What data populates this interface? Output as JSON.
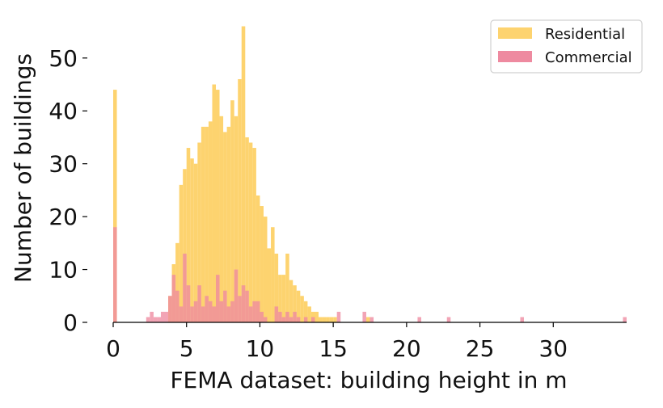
{
  "chart_data": {
    "type": "bar",
    "xlabel": "FEMA dataset: building height in m",
    "ylabel": "Number of buildings",
    "xlim": [
      0,
      35
    ],
    "ylim": [
      0,
      57
    ],
    "xticks": [
      0,
      5,
      10,
      15,
      20,
      25,
      30
    ],
    "yticks": [
      0,
      10,
      20,
      30,
      40,
      50
    ],
    "bin_width": 0.25,
    "legend_position": "top-right",
    "grid": false,
    "series": [
      {
        "name": "Residential",
        "color": "#fdd36f",
        "points": [
          [
            0.0,
            44
          ],
          [
            3.75,
            5
          ],
          [
            4.0,
            11
          ],
          [
            4.25,
            15
          ],
          [
            4.5,
            26
          ],
          [
            4.75,
            29
          ],
          [
            5.0,
            33
          ],
          [
            5.25,
            31
          ],
          [
            5.5,
            30
          ],
          [
            5.75,
            34
          ],
          [
            6.0,
            37
          ],
          [
            6.25,
            37
          ],
          [
            6.5,
            38
          ],
          [
            6.75,
            45
          ],
          [
            7.0,
            44
          ],
          [
            7.25,
            39
          ],
          [
            7.5,
            36
          ],
          [
            7.75,
            37
          ],
          [
            8.0,
            42
          ],
          [
            8.25,
            39
          ],
          [
            8.5,
            46
          ],
          [
            8.75,
            56
          ],
          [
            9.0,
            35
          ],
          [
            9.25,
            34
          ],
          [
            9.5,
            33
          ],
          [
            9.75,
            24
          ],
          [
            10.0,
            22
          ],
          [
            10.25,
            20
          ],
          [
            10.5,
            14
          ],
          [
            10.75,
            18
          ],
          [
            11.0,
            13
          ],
          [
            11.25,
            9
          ],
          [
            11.5,
            9
          ],
          [
            11.75,
            13
          ],
          [
            12.0,
            8
          ],
          [
            12.25,
            7
          ],
          [
            12.5,
            6
          ],
          [
            12.75,
            5
          ],
          [
            13.0,
            4
          ],
          [
            13.25,
            3
          ],
          [
            13.5,
            2
          ],
          [
            13.75,
            2
          ],
          [
            14.0,
            1
          ],
          [
            14.25,
            1
          ],
          [
            14.5,
            1
          ],
          [
            14.75,
            1
          ],
          [
            15.0,
            1
          ],
          [
            17.25,
            1
          ]
        ]
      },
      {
        "name": "Commercial",
        "color": "#ee8aa0",
        "points": [
          [
            0.0,
            18
          ],
          [
            2.25,
            1
          ],
          [
            2.5,
            2
          ],
          [
            2.75,
            1
          ],
          [
            3.0,
            1
          ],
          [
            3.25,
            2
          ],
          [
            3.5,
            2
          ],
          [
            3.75,
            5
          ],
          [
            4.0,
            9
          ],
          [
            4.25,
            6
          ],
          [
            4.5,
            3
          ],
          [
            4.75,
            13
          ],
          [
            5.0,
            7
          ],
          [
            5.25,
            3
          ],
          [
            5.5,
            4
          ],
          [
            5.75,
            7
          ],
          [
            6.0,
            3
          ],
          [
            6.25,
            5
          ],
          [
            6.5,
            4
          ],
          [
            6.75,
            3
          ],
          [
            7.0,
            9
          ],
          [
            7.25,
            4
          ],
          [
            7.5,
            6
          ],
          [
            7.75,
            3
          ],
          [
            8.0,
            4
          ],
          [
            8.25,
            10
          ],
          [
            8.5,
            5
          ],
          [
            8.75,
            7
          ],
          [
            9.0,
            6
          ],
          [
            9.25,
            3
          ],
          [
            9.5,
            4
          ],
          [
            9.75,
            4
          ],
          [
            10.0,
            2
          ],
          [
            10.25,
            1
          ],
          [
            11.0,
            3
          ],
          [
            11.25,
            2
          ],
          [
            11.5,
            1
          ],
          [
            11.75,
            2
          ],
          [
            12.0,
            1
          ],
          [
            12.25,
            2
          ],
          [
            12.5,
            1
          ],
          [
            13.0,
            1
          ],
          [
            13.5,
            1
          ],
          [
            15.25,
            2
          ],
          [
            17.0,
            2
          ],
          [
            17.5,
            1
          ],
          [
            20.75,
            1
          ],
          [
            22.75,
            1
          ],
          [
            27.75,
            1
          ],
          [
            34.75,
            1
          ]
        ]
      }
    ]
  }
}
